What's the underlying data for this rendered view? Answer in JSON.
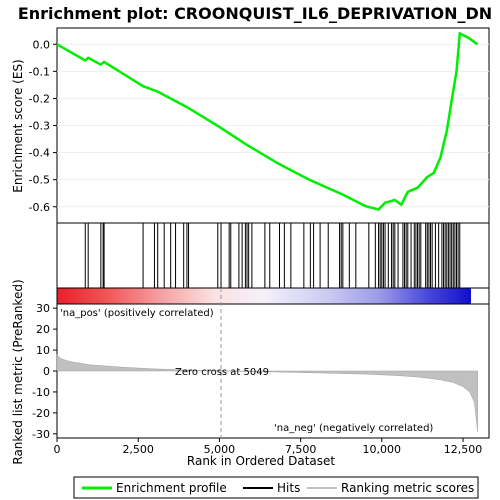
{
  "chart_data": {
    "type": "line",
    "title": "Enrichment plot: CROONQUIST_IL6_DEPRIVATION_DN",
    "xlabel": "Rank in Ordered Dataset",
    "colors": {
      "profile": "#00ee00",
      "hits": "#000000",
      "metric_fill": "#c0c0c0",
      "zero_cross": "#999999",
      "pos_label": "#cc0000",
      "neg_label": "#0000cc"
    },
    "x_ticks": [
      0,
      2500,
      5000,
      7500,
      10000,
      12500
    ],
    "x_tick_labels": [
      "0",
      "2,500",
      "5,000",
      "7,500",
      "10,000",
      "12,500"
    ],
    "xlim": [
      0,
      13300
    ],
    "es_panel": {
      "ylabel": "Enrichment score (ES)",
      "ylim": [
        -0.66,
        0.06
      ],
      "y_ticks": [
        0.0,
        -0.1,
        -0.2,
        -0.3,
        -0.4,
        -0.5,
        -0.6
      ],
      "y_tick_labels": [
        "0.0",
        "-0.1",
        "-0.2",
        "-0.3",
        "-0.4",
        "-0.5",
        "-0.6"
      ],
      "profile": [
        [
          0,
          0.0
        ],
        [
          870,
          -0.06
        ],
        [
          960,
          -0.05
        ],
        [
          1350,
          -0.075
        ],
        [
          1450,
          -0.065
        ],
        [
          2650,
          -0.155
        ],
        [
          3100,
          -0.175
        ],
        [
          4000,
          -0.232
        ],
        [
          5000,
          -0.305
        ],
        [
          5800,
          -0.368
        ],
        [
          6800,
          -0.44
        ],
        [
          7800,
          -0.502
        ],
        [
          8800,
          -0.555
        ],
        [
          9500,
          -0.598
        ],
        [
          9900,
          -0.61
        ],
        [
          10100,
          -0.585
        ],
        [
          10400,
          -0.575
        ],
        [
          10600,
          -0.592
        ],
        [
          10800,
          -0.545
        ],
        [
          11100,
          -0.53
        ],
        [
          11400,
          -0.49
        ],
        [
          11600,
          -0.475
        ],
        [
          11800,
          -0.42
        ],
        [
          12000,
          -0.32
        ],
        [
          12150,
          -0.21
        ],
        [
          12300,
          -0.1
        ],
        [
          12400,
          0.04
        ],
        [
          12650,
          0.025
        ],
        [
          12950,
          0.0
        ]
      ]
    },
    "hits": [
      870,
      960,
      1350,
      1420,
      1450,
      2650,
      3000,
      3100,
      3300,
      3500,
      3650,
      3900,
      4000,
      4050,
      4950,
      5050,
      5300,
      5350,
      5600,
      5700,
      5800,
      5850,
      5900,
      6000,
      6400,
      6550,
      6850,
      7000,
      7200,
      7600,
      7800,
      7900,
      8100,
      8350,
      8700,
      8750,
      8800,
      9000,
      9200,
      9600,
      9800,
      9900,
      9950,
      10000,
      10050,
      10100,
      10200,
      10300,
      10350,
      10400,
      10500,
      10650,
      10700,
      10750,
      10800,
      10900,
      11000,
      11050,
      11100,
      11150,
      11200,
      11350,
      11400,
      11450,
      11500,
      11550,
      11650,
      11750,
      11850,
      11900,
      11950,
      12000,
      12050,
      12100,
      12150,
      12200,
      12250,
      12300,
      12350,
      12400
    ],
    "metric_panel": {
      "ylabel": "Ranked list metric (PreRanked)",
      "ylim": [
        -32,
        32
      ],
      "y_ticks": [
        30,
        20,
        10,
        0,
        -10,
        -20,
        -30
      ],
      "y_tick_labels": [
        "30",
        "20",
        "10",
        "0",
        "-10",
        "-20",
        "-30"
      ],
      "zero_cross_rank": 5049,
      "zero_cross_label": "Zero cross at 5049",
      "pos_label": "'na_pos' (positively correlated)",
      "neg_label": "'na_neg' (negatively correlated)",
      "profile": [
        [
          0,
          8.0
        ],
        [
          100,
          6.0
        ],
        [
          400,
          4.5
        ],
        [
          1000,
          3.0
        ],
        [
          2000,
          1.8
        ],
        [
          3000,
          1.0
        ],
        [
          4000,
          0.5
        ],
        [
          5049,
          0.0
        ],
        [
          6500,
          -0.4
        ],
        [
          8000,
          -0.9
        ],
        [
          9500,
          -1.5
        ],
        [
          10500,
          -2.2
        ],
        [
          11200,
          -3.0
        ],
        [
          11800,
          -4.2
        ],
        [
          12200,
          -5.5
        ],
        [
          12500,
          -7.5
        ],
        [
          12700,
          -10.0
        ],
        [
          12850,
          -15.0
        ],
        [
          12950,
          -29.0
        ]
      ]
    },
    "legend": [
      "Enrichment profile",
      "Hits",
      "Ranking metric scores"
    ]
  }
}
